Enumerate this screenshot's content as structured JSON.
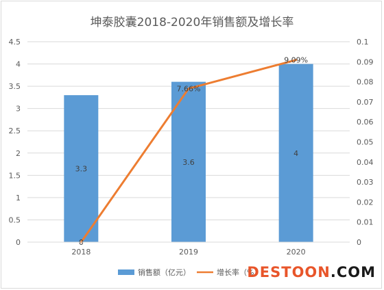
{
  "chart_data": {
    "type": "bar",
    "title": "坤泰胶囊2018-2020年销售额及增长率",
    "categories": [
      "2018",
      "2019",
      "2020"
    ],
    "series": [
      {
        "name": "销售额（亿元）",
        "type": "bar",
        "axis": "left",
        "values": [
          3.3,
          3.6,
          4
        ],
        "data_labels": [
          "3.3",
          "3.6",
          "4"
        ],
        "color": "#5b9bd5"
      },
      {
        "name": "增长率（%）",
        "type": "line",
        "axis": "right",
        "values": [
          0,
          0.0766,
          0.0909
        ],
        "data_labels": [
          "0",
          "7.66%",
          "9.09%"
        ],
        "color": "#ed7d31"
      }
    ],
    "y_left": {
      "min": 0,
      "max": 4.5,
      "step": 0.5,
      "ticks": [
        "0",
        "0.5",
        "1",
        "1.5",
        "2",
        "2.5",
        "3",
        "3.5",
        "4",
        "4.5"
      ]
    },
    "y_right": {
      "min": 0,
      "max": 0.1,
      "step": 0.01,
      "ticks": [
        "0",
        "0.01",
        "0.02",
        "0.03",
        "0.04",
        "0.05",
        "0.06",
        "0.07",
        "0.08",
        "0.09",
        "0.1"
      ]
    },
    "grid": true,
    "legend_position": "bottom"
  },
  "watermark": {
    "part1": "DESTOON",
    "part2": ".COM"
  },
  "colors": {
    "gridline": "#d9d9d9",
    "axis_text": "#595959",
    "title_text": "#595959"
  }
}
